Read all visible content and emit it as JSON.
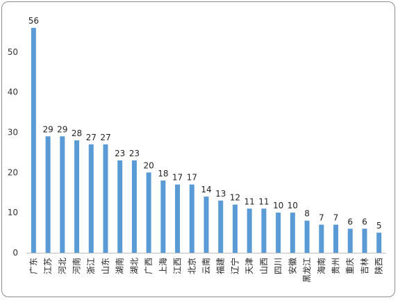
{
  "chart_data": {
    "type": "bar",
    "title": "",
    "xlabel": "",
    "ylabel": "",
    "ylim": [
      0,
      60
    ],
    "yticks": [
      0,
      10,
      20,
      30,
      40,
      50
    ],
    "grid": false,
    "legend": "none",
    "bar_color": "#5b9bd5",
    "categories": [
      "广东",
      "江苏",
      "河北",
      "河南",
      "浙江",
      "山东",
      "湖南",
      "湖北",
      "广西",
      "上海",
      "江西",
      "北京",
      "云南",
      "福建",
      "辽宁",
      "天津",
      "山西",
      "四川",
      "安徽",
      "黑龙江",
      "海南",
      "贵州",
      "重庆",
      "吉林",
      "陕西"
    ],
    "values": [
      56,
      29,
      29,
      28,
      27,
      27,
      23,
      23,
      20,
      18,
      17,
      17,
      14,
      13,
      12,
      11,
      11,
      10,
      10,
      8,
      7,
      7,
      6,
      6,
      5
    ]
  }
}
